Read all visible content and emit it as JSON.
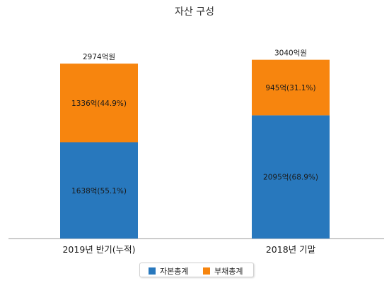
{
  "chart_data": {
    "type": "bar",
    "stacked": true,
    "title": "자산 구성",
    "categories": [
      "2019년 반기(누적)",
      "2018년 기말"
    ],
    "totals": [
      2974,
      3040
    ],
    "total_labels": [
      "2974억원",
      "3040억원"
    ],
    "series": [
      {
        "name": "자본총계",
        "color": "#2878bd",
        "values": [
          1638,
          2095
        ],
        "labels": [
          "1638억(55.1%)",
          "2095억(68.9%)"
        ]
      },
      {
        "name": "부채총계",
        "color": "#f7850e",
        "values": [
          1336,
          945
        ],
        "labels": [
          "1336억(44.9%)",
          "945억(31.1%)"
        ]
      }
    ],
    "ylim": [
      0,
      3600
    ],
    "grid": false,
    "legend_position": "bottom"
  }
}
